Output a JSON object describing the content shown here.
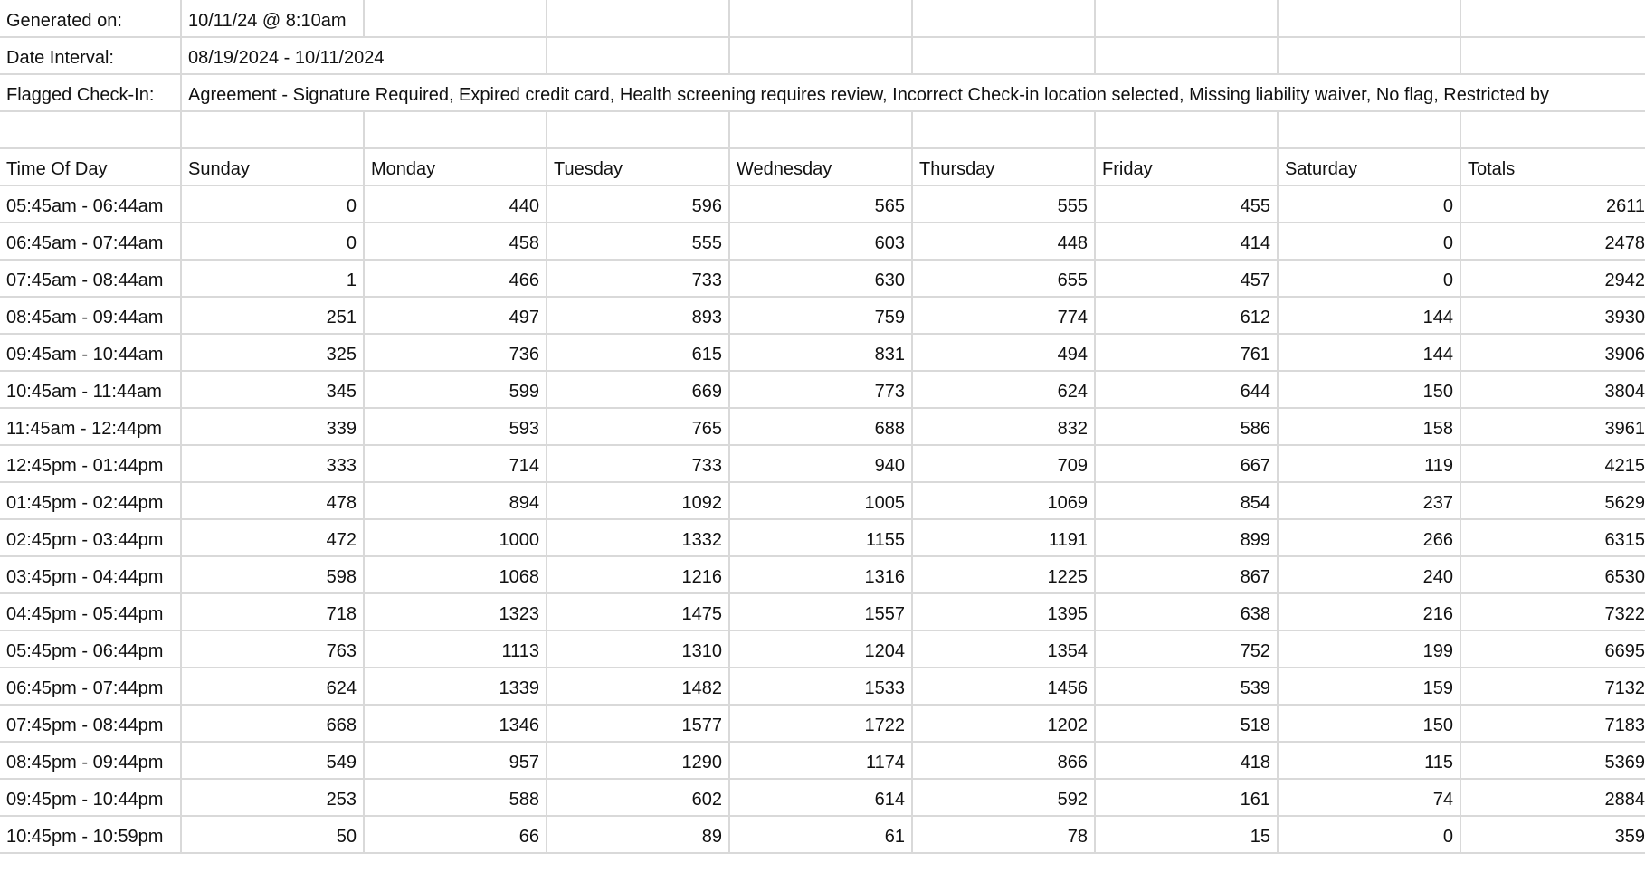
{
  "meta": {
    "generated_label": "Generated on:",
    "generated_value": "10/11/24 @ 8:10am",
    "interval_label": "Date Interval:",
    "interval_value": "08/19/2024 - 10/11/2024",
    "flagged_label": "Flagged Check-In:",
    "flagged_value": "Agreement - Signature Required, Expired credit card, Health screening requires review, Incorrect Check-in location selected, Missing liability waiver, No flag, Restricted by"
  },
  "headers": [
    "Time Of Day",
    "Sunday",
    "Monday",
    "Tuesday",
    "Wednesday",
    "Thursday",
    "Friday",
    "Saturday",
    "Totals"
  ],
  "rows": [
    [
      "05:45am - 06:44am",
      "0",
      "440",
      "596",
      "565",
      "555",
      "455",
      "0",
      "2611"
    ],
    [
      "06:45am - 07:44am",
      "0",
      "458",
      "555",
      "603",
      "448",
      "414",
      "0",
      "2478"
    ],
    [
      "07:45am - 08:44am",
      "1",
      "466",
      "733",
      "630",
      "655",
      "457",
      "0",
      "2942"
    ],
    [
      "08:45am - 09:44am",
      "251",
      "497",
      "893",
      "759",
      "774",
      "612",
      "144",
      "3930"
    ],
    [
      "09:45am - 10:44am",
      "325",
      "736",
      "615",
      "831",
      "494",
      "761",
      "144",
      "3906"
    ],
    [
      "10:45am - 11:44am",
      "345",
      "599",
      "669",
      "773",
      "624",
      "644",
      "150",
      "3804"
    ],
    [
      "11:45am - 12:44pm",
      "339",
      "593",
      "765",
      "688",
      "832",
      "586",
      "158",
      "3961"
    ],
    [
      "12:45pm - 01:44pm",
      "333",
      "714",
      "733",
      "940",
      "709",
      "667",
      "119",
      "4215"
    ],
    [
      "01:45pm - 02:44pm",
      "478",
      "894",
      "1092",
      "1005",
      "1069",
      "854",
      "237",
      "5629"
    ],
    [
      "02:45pm - 03:44pm",
      "472",
      "1000",
      "1332",
      "1155",
      "1191",
      "899",
      "266",
      "6315"
    ],
    [
      "03:45pm - 04:44pm",
      "598",
      "1068",
      "1216",
      "1316",
      "1225",
      "867",
      "240",
      "6530"
    ],
    [
      "04:45pm - 05:44pm",
      "718",
      "1323",
      "1475",
      "1557",
      "1395",
      "638",
      "216",
      "7322"
    ],
    [
      "05:45pm - 06:44pm",
      "763",
      "1113",
      "1310",
      "1204",
      "1354",
      "752",
      "199",
      "6695"
    ],
    [
      "06:45pm - 07:44pm",
      "624",
      "1339",
      "1482",
      "1533",
      "1456",
      "539",
      "159",
      "7132"
    ],
    [
      "07:45pm - 08:44pm",
      "668",
      "1346",
      "1577",
      "1722",
      "1202",
      "518",
      "150",
      "7183"
    ],
    [
      "08:45pm - 09:44pm",
      "549",
      "957",
      "1290",
      "1174",
      "866",
      "418",
      "115",
      "5369"
    ],
    [
      "09:45pm - 10:44pm",
      "253",
      "588",
      "602",
      "614",
      "592",
      "161",
      "74",
      "2884"
    ],
    [
      "10:45pm - 10:59pm",
      "50",
      "66",
      "89",
      "61",
      "78",
      "15",
      "0",
      "359"
    ]
  ]
}
